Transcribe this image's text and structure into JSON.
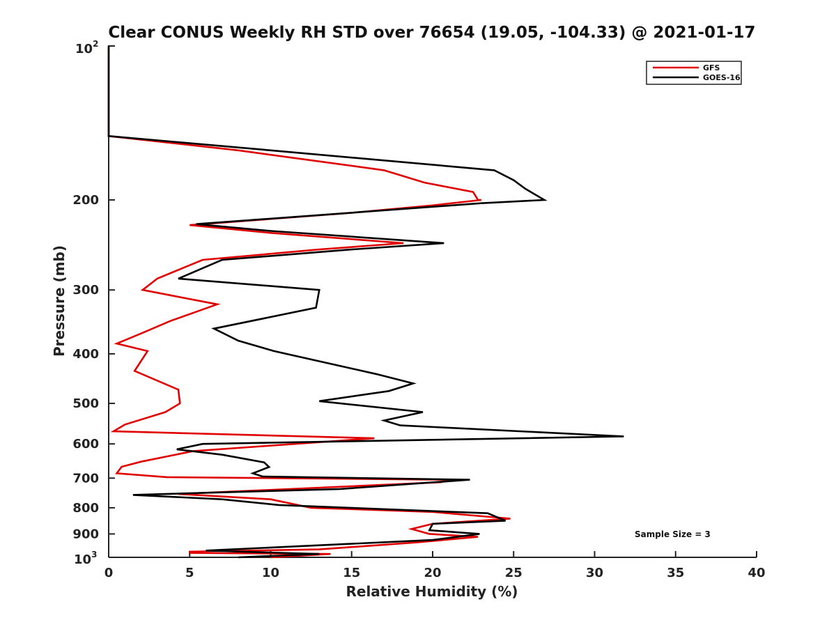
{
  "chart_data": {
    "type": "line",
    "title": "Clear CONUS Weekly RH STD over 76654 (19.05, -104.33) @ 2021-01-17",
    "xlabel": "Relative Humidity (%)",
    "ylabel": "Pressure (mb)",
    "xlim": [
      0,
      40
    ],
    "ylim": [
      100,
      1000
    ],
    "yscale": "log",
    "y_reversed": true,
    "x_ticks": [
      0,
      5,
      10,
      15,
      20,
      25,
      30,
      35,
      40
    ],
    "x_tick_labels": [
      "0",
      "5",
      "10",
      "15",
      "20",
      "25",
      "30",
      "35",
      "40"
    ],
    "y_ticks": [
      200,
      300,
      400,
      500,
      600,
      700,
      800,
      900
    ],
    "y_tick_labels": [
      "200",
      "300",
      "400",
      "500",
      "600",
      "700",
      "800",
      "900"
    ],
    "y_top_label": {
      "base": "10",
      "exp": "2"
    },
    "y_bottom_label": {
      "base": "10",
      "exp": "3"
    },
    "grid": false,
    "legend_position": "top-right",
    "annotation": "Sample Size = 3",
    "series": [
      {
        "name": "GFS",
        "color": "#e00000",
        "points": [
          [
            0,
            100
          ],
          [
            0,
            150
          ],
          [
            8,
            160
          ],
          [
            17,
            175
          ],
          [
            19.5,
            185
          ],
          [
            22.5,
            193
          ],
          [
            22.8,
            200
          ],
          [
            23,
            200
          ],
          [
            20,
            205
          ],
          [
            15,
            212
          ],
          [
            5,
            224
          ],
          [
            10,
            232
          ],
          [
            18.2,
            243
          ],
          [
            13,
            250
          ],
          [
            5.8,
            262
          ],
          [
            3,
            285
          ],
          [
            2.1,
            300
          ],
          [
            6.7,
            320
          ],
          [
            3.8,
            345
          ],
          [
            2,
            365
          ],
          [
            0.5,
            382
          ],
          [
            2.4,
            395
          ],
          [
            1.6,
            432
          ],
          [
            4.3,
            470
          ],
          [
            4.4,
            500
          ],
          [
            3.5,
            520
          ],
          [
            1,
            550
          ],
          [
            0.3,
            567
          ],
          [
            16.4,
            585
          ],
          [
            5.2,
            620
          ],
          [
            2,
            650
          ],
          [
            0.8,
            665
          ],
          [
            0.5,
            685
          ],
          [
            3.6,
            697
          ],
          [
            21,
            705
          ],
          [
            20.5,
            713
          ],
          [
            4.3,
            752
          ],
          [
            10,
            770
          ],
          [
            12.5,
            800
          ],
          [
            20,
            815
          ],
          [
            23.8,
            835
          ],
          [
            24.8,
            840
          ],
          [
            20,
            860
          ],
          [
            18.7,
            880
          ],
          [
            19.8,
            900
          ],
          [
            22.8,
            912
          ],
          [
            19,
            935
          ],
          [
            13,
            965
          ],
          [
            5,
            975
          ],
          [
            5,
            980
          ],
          [
            13.7,
            985
          ],
          [
            10,
            1000
          ],
          [
            10,
            1000
          ]
        ]
      },
      {
        "name": "GOES-16",
        "color": "#000000",
        "points": [
          [
            0,
            100
          ],
          [
            0,
            150
          ],
          [
            10,
            160
          ],
          [
            23.8,
            175
          ],
          [
            25,
            183
          ],
          [
            25.7,
            190
          ],
          [
            26.9,
            200
          ],
          [
            23,
            203
          ],
          [
            5.4,
            223
          ],
          [
            10,
            230
          ],
          [
            20.7,
            243
          ],
          [
            15,
            250
          ],
          [
            7,
            262
          ],
          [
            4.3,
            285
          ],
          [
            13,
            300
          ],
          [
            12.8,
            325
          ],
          [
            6.5,
            357
          ],
          [
            8,
            377
          ],
          [
            10.2,
            395
          ],
          [
            16.5,
            438
          ],
          [
            18.8,
            457
          ],
          [
            17.3,
            473
          ],
          [
            13,
            495
          ],
          [
            19.4,
            520
          ],
          [
            17,
            540
          ],
          [
            18,
            552
          ],
          [
            31.8,
            580
          ],
          [
            5.8,
            600
          ],
          [
            4.2,
            615
          ],
          [
            7,
            630
          ],
          [
            9.6,
            652
          ],
          [
            9.9,
            666
          ],
          [
            8.9,
            685
          ],
          [
            9.5,
            695
          ],
          [
            22.3,
            705
          ],
          [
            14.3,
            735
          ],
          [
            1.5,
            755
          ],
          [
            7,
            770
          ],
          [
            10.5,
            790
          ],
          [
            23.4,
            820
          ],
          [
            24.5,
            848
          ],
          [
            20,
            860
          ],
          [
            19.8,
            885
          ],
          [
            22.9,
            900
          ],
          [
            20,
            925
          ],
          [
            6,
            970
          ],
          [
            13,
            985
          ],
          [
            8,
            1000
          ]
        ]
      }
    ]
  }
}
